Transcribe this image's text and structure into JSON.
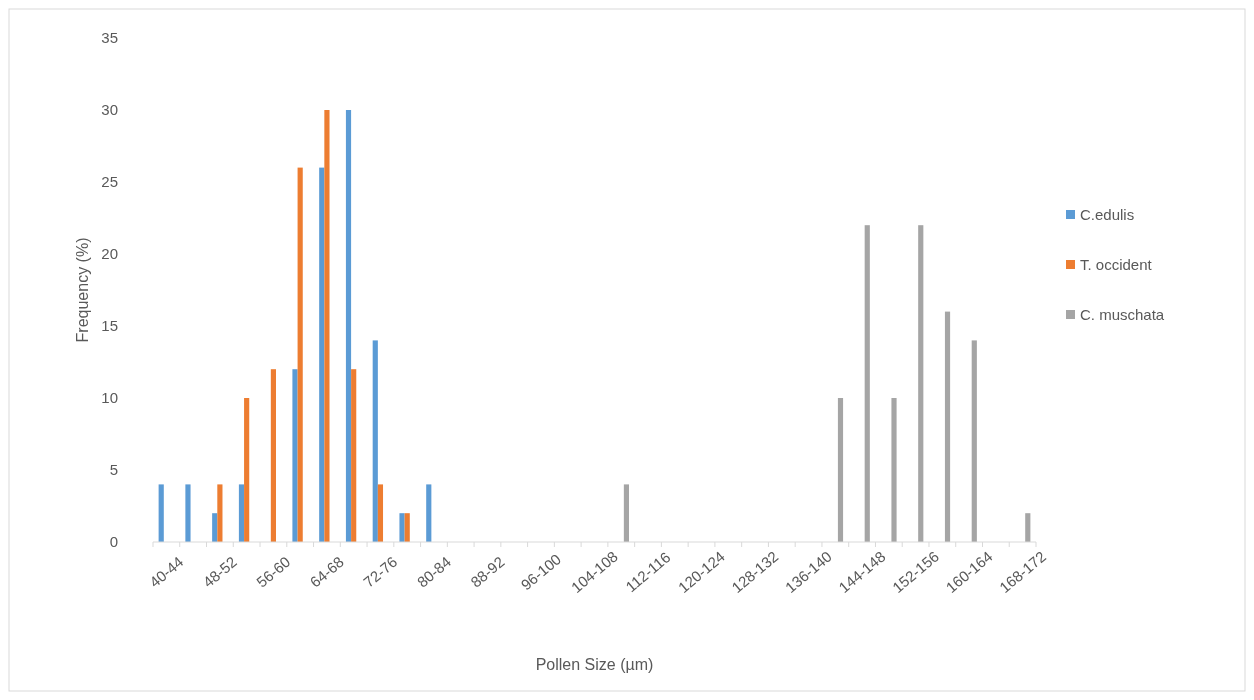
{
  "chart_data": {
    "type": "bar",
    "xlabel": "Pollen Size (µm)",
    "ylabel": "Frequency (%)",
    "categories": [
      "40-44",
      null,
      "48-52",
      null,
      "56-60",
      null,
      "64-68",
      null,
      "72-76",
      null,
      "80-84",
      null,
      "88-92",
      null,
      "96-100",
      null,
      "104-108",
      null,
      "112-116",
      null,
      "120-124",
      null,
      "128-132",
      null,
      "136-140",
      null,
      "144-148",
      null,
      "152-156",
      null,
      "160-164",
      null,
      "168-172"
    ],
    "series": [
      {
        "name": "C.edulis",
        "color": "#5b9bd5",
        "values": [
          4,
          4,
          2,
          4,
          0,
          12,
          26,
          30,
          14,
          2,
          4,
          0,
          0,
          0,
          0,
          0,
          0,
          0,
          0,
          0,
          0,
          0,
          0,
          0,
          0,
          0,
          0,
          0,
          0,
          0,
          0,
          0,
          0
        ]
      },
      {
        "name": "T. occident",
        "color": "#ed7d31",
        "values": [
          0,
          0,
          4,
          10,
          12,
          26,
          30,
          12,
          4,
          2,
          0,
          0,
          0,
          0,
          0,
          0,
          0,
          0,
          0,
          0,
          0,
          0,
          0,
          0,
          0,
          0,
          0,
          0,
          0,
          0,
          0,
          0,
          0
        ]
      },
      {
        "name": "C. muschata",
        "color": "#a5a5a5",
        "values": [
          0,
          0,
          0,
          0,
          0,
          0,
          0,
          0,
          0,
          0,
          0,
          0,
          0,
          0,
          0,
          0,
          0,
          4,
          0,
          0,
          0,
          0,
          0,
          0,
          0,
          10,
          22,
          10,
          22,
          16,
          14,
          0,
          2
        ]
      }
    ],
    "ylim": [
      0,
      35
    ],
    "yticks": [
      0,
      5,
      10,
      15,
      20,
      25,
      30,
      35
    ],
    "grid": false,
    "legend": "right"
  }
}
